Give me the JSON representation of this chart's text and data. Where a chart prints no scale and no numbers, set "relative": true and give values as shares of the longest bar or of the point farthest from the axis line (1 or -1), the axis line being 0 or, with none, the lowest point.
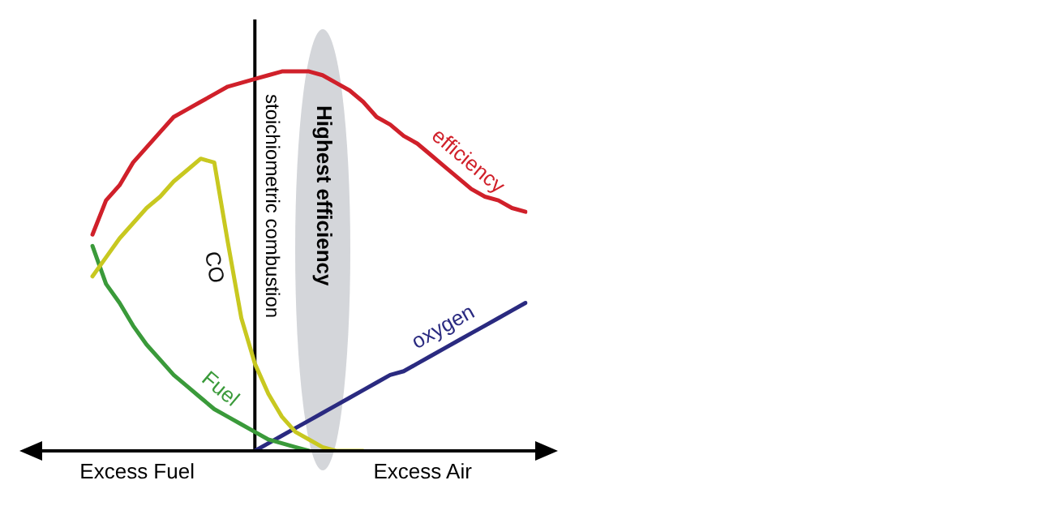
{
  "chart_data": {
    "type": "line",
    "relative": true,
    "categories": [
      null,
      null,
      null,
      null,
      null,
      null,
      null,
      null,
      null,
      null,
      null,
      null,
      null,
      null,
      null,
      null,
      null,
      null,
      null,
      null,
      null,
      null,
      null,
      null,
      null,
      null,
      null,
      null,
      null,
      null,
      null,
      null,
      null,
      null,
      null,
      null
    ],
    "series": [
      {
        "name": "efficiency",
        "color": "#d0202a",
        "values": [
          null,
          null,
          null,
          0.57,
          0.66,
          0.7,
          0.76,
          0.8,
          0.84,
          0.88,
          0.9,
          0.92,
          0.94,
          0.96,
          0.97,
          0.98,
          0.99,
          1,
          1,
          1,
          0.99,
          0.97,
          0.95,
          0.92,
          0.88,
          0.86,
          0.83,
          0.81,
          0.78,
          0.75,
          0.72,
          0.69,
          0.67,
          0.66,
          0.64,
          0.63
        ]
      },
      {
        "name": "CO",
        "color": "#c8c820",
        "values": [
          null,
          null,
          null,
          0.46,
          0.51,
          0.56,
          0.6,
          0.64,
          0.67,
          0.71,
          0.74,
          0.77,
          0.76,
          0.55,
          0.35,
          0.23,
          0.15,
          0.09,
          0.05,
          0.03,
          0.01,
          0,
          0,
          0,
          null,
          null,
          null,
          null,
          null,
          null,
          null,
          null,
          null,
          null,
          null,
          null
        ]
      },
      {
        "name": "Fuel",
        "color": "#3a9a3a",
        "values": [
          null,
          null,
          null,
          0.54,
          0.44,
          0.39,
          0.33,
          0.28,
          0.24,
          0.2,
          0.17,
          0.14,
          0.11,
          0.09,
          0.07,
          0.05,
          0.03,
          0.02,
          0.01,
          0,
          null,
          null,
          null,
          null,
          null,
          null,
          null,
          null,
          null,
          null,
          null,
          null,
          null,
          null,
          null,
          null
        ]
      },
      {
        "name": "oxygen",
        "color": "#2a2a80",
        "values": [
          null,
          null,
          null,
          null,
          null,
          null,
          null,
          null,
          null,
          null,
          null,
          null,
          null,
          null,
          null,
          0,
          0.02,
          0.04,
          0.06,
          0.08,
          0.1,
          0.12,
          0.14,
          0.16,
          0.18,
          0.2,
          0.21,
          0.23,
          0.25,
          0.27,
          0.29,
          0.31,
          0.33,
          0.35,
          0.37,
          0.39
        ]
      }
    ],
    "annotations": [
      "Excess Fuel",
      "Excess Air",
      "stoichiometric combustion",
      "Highest efficiency"
    ]
  }
}
